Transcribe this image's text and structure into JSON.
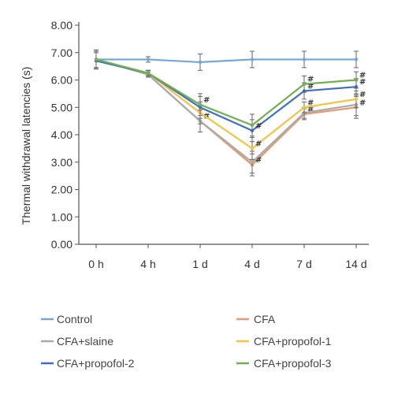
{
  "chart_data": {
    "type": "line",
    "ylabel": "Thermal withdrawal latencies (s)",
    "xlabel": "",
    "categories": [
      "0 h",
      "4 h",
      "1 d",
      "4 d",
      "7 d",
      "14 d"
    ],
    "ylim": [
      0,
      8
    ],
    "yticks": [
      "0.00",
      "1.00",
      "2.00",
      "3.00",
      "4.00",
      "5.00",
      "6.00",
      "7.00",
      "8.00"
    ],
    "grid": false,
    "legend_position": "bottom",
    "series": [
      {
        "name": "Control",
        "color": "#6fa8dc",
        "values": [
          6.75,
          6.75,
          6.65,
          6.75,
          6.75,
          6.75
        ],
        "errors": [
          0.35,
          0.1,
          0.3,
          0.3,
          0.3,
          0.3
        ],
        "marks": [
          "",
          "",
          "",
          "",
          "",
          ""
        ]
      },
      {
        "name": "CFA",
        "color": "#e69a72",
        "values": [
          6.75,
          6.2,
          4.5,
          2.9,
          4.75,
          5.0
        ],
        "errors": [
          0.3,
          0.1,
          0.4,
          0.4,
          0.2,
          0.4
        ],
        "marks": [
          "",
          "",
          "#",
          "#",
          "#",
          "#"
        ]
      },
      {
        "name": "CFA+slaine",
        "color": "#aaaaaa",
        "values": [
          6.75,
          6.2,
          4.5,
          3.0,
          4.8,
          5.1
        ],
        "errors": [
          0.3,
          0.1,
          0.4,
          0.4,
          0.2,
          0.4
        ],
        "marks": [
          "",
          "",
          "",
          "",
          "",
          ""
        ]
      },
      {
        "name": "CFA+propofol-1",
        "color": "#f5c242",
        "values": [
          6.75,
          6.25,
          4.8,
          3.5,
          5.0,
          5.3
        ],
        "errors": [
          0.3,
          0.1,
          0.4,
          0.4,
          0.2,
          0.3
        ],
        "marks": [
          "",
          "",
          "",
          "#",
          "#",
          "#"
        ]
      },
      {
        "name": "CFA+propofol-2",
        "color": "#3d6fc4",
        "values": [
          6.7,
          6.25,
          5.0,
          4.15,
          5.6,
          5.75
        ],
        "errors": [
          0.3,
          0.1,
          0.4,
          0.4,
          0.3,
          0.3
        ],
        "marks": [
          "",
          "",
          "",
          "#",
          "#",
          "#"
        ]
      },
      {
        "name": "CFA+propofol-3",
        "color": "#6fb04f",
        "values": [
          6.75,
          6.25,
          5.1,
          4.35,
          5.85,
          6.0
        ],
        "errors": [
          0.3,
          0.1,
          0.4,
          0.4,
          0.3,
          0.3
        ],
        "marks": [
          "",
          "",
          "#",
          "",
          "#",
          "#"
        ]
      }
    ]
  }
}
